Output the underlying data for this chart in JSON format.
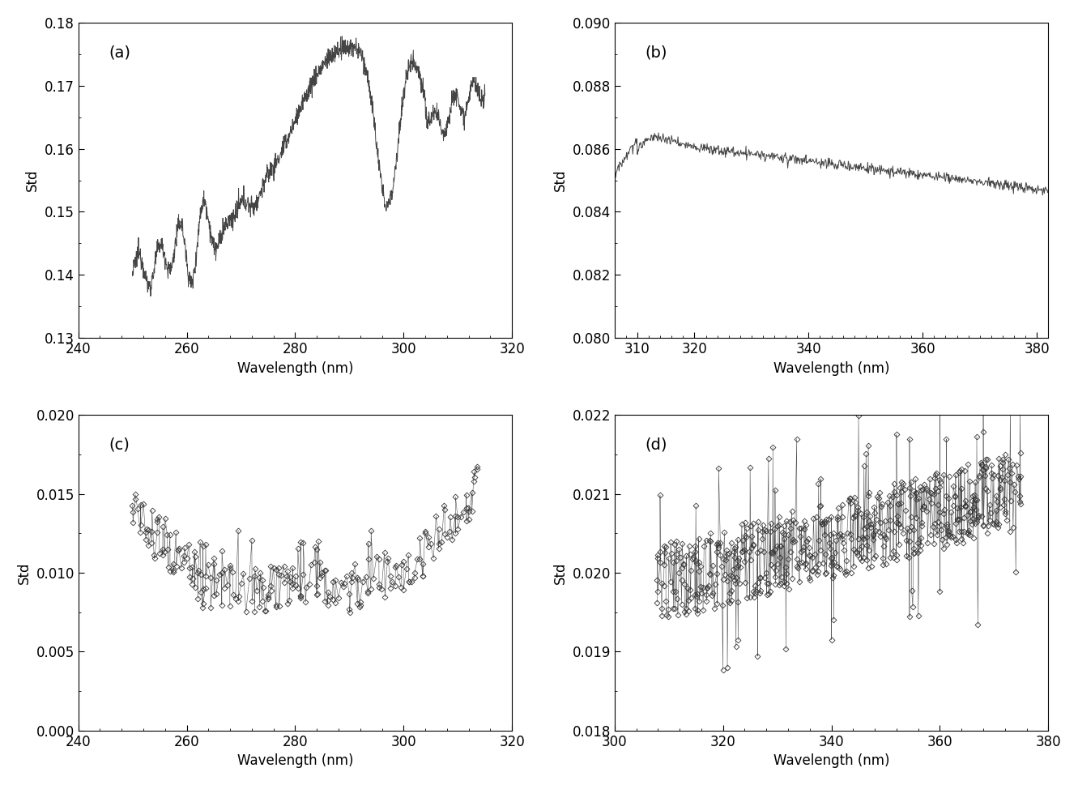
{
  "panel_a": {
    "label": "(a)",
    "xlabel": "Wavelength (nm)",
    "ylabel": "Std",
    "xlim": [
      240,
      320
    ],
    "ylim": [
      0.13,
      0.18
    ],
    "yticks": [
      0.13,
      0.14,
      0.15,
      0.16,
      0.17,
      0.18
    ],
    "xticks": [
      240,
      260,
      280,
      300,
      320
    ],
    "line_color": "#444444"
  },
  "panel_b": {
    "label": "(b)",
    "xlabel": "Wavelength (nm)",
    "ylabel": "Std",
    "xlim": [
      306,
      382
    ],
    "ylim": [
      0.08,
      0.09
    ],
    "yticks": [
      0.08,
      0.082,
      0.084,
      0.086,
      0.088,
      0.09
    ],
    "xticks": [
      310,
      320,
      340,
      360,
      380
    ],
    "line_color": "#444444"
  },
  "panel_c": {
    "label": "(c)",
    "xlabel": "Wavelength (nm)",
    "ylabel": "Std",
    "xlim": [
      245,
      318
    ],
    "ylim": [
      0.0,
      0.02
    ],
    "yticks": [
      0.0,
      0.005,
      0.01,
      0.015,
      0.02
    ],
    "xticks": [
      240,
      260,
      280,
      300,
      320
    ],
    "line_color": "#444444"
  },
  "panel_d": {
    "label": "(d)",
    "xlabel": "Wavelength (nm)",
    "ylabel": "Std",
    "xlim": [
      305,
      378
    ],
    "ylim": [
      0.018,
      0.022
    ],
    "yticks": [
      0.018,
      0.019,
      0.02,
      0.021,
      0.022
    ],
    "xticks": [
      300,
      320,
      340,
      360,
      380
    ],
    "line_color": "#444444"
  },
  "bg_color": "#ffffff",
  "text_color": "#000000",
  "font_size": 12
}
